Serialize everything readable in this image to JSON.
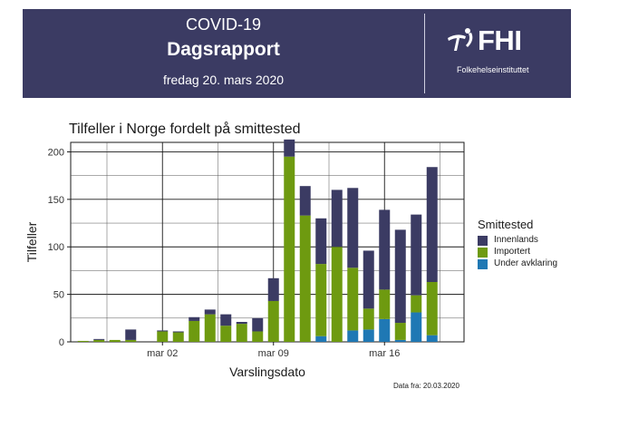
{
  "header": {
    "title": "COVID-19",
    "subtitle": "Dagsrapport",
    "date": "fredag 20. mars 2020",
    "logo_text": "FHI",
    "logo_subtext": "Folkehelseinstituttet",
    "background": "#3b3b63"
  },
  "chart_data": {
    "type": "bar",
    "stacked": true,
    "title": "Tilfeller i Norge fordelt på smittested",
    "xlabel": "Varslingsdato",
    "ylabel": "Tilfeller",
    "ylim": [
      0,
      210
    ],
    "yticks": [
      0,
      50,
      100,
      150,
      200
    ],
    "xticks": [
      {
        "label": "mar 02",
        "day": 6
      },
      {
        "label": "mar 09",
        "day": 13
      },
      {
        "label": "mar 16",
        "day": 20
      }
    ],
    "grid": true,
    "legend": {
      "title": "Smittested",
      "position": "right"
    },
    "x_days": [
      1,
      2,
      3,
      4,
      5,
      6,
      7,
      8,
      9,
      10,
      11,
      12,
      13,
      14,
      15,
      16,
      17,
      18,
      19,
      20,
      21,
      22,
      23,
      24
    ],
    "series": [
      {
        "name": "Under avklaring",
        "color": "#1f78b4",
        "values": [
          0,
          0,
          0,
          0,
          0,
          0,
          0,
          0,
          0,
          0,
          0,
          0,
          0,
          0,
          0,
          6,
          0,
          12,
          13,
          24,
          2,
          31,
          7,
          0
        ]
      },
      {
        "name": "Importert",
        "color": "#6e9a10",
        "values": [
          1,
          2,
          2,
          2,
          0,
          11,
          10,
          22,
          29,
          17,
          19,
          11,
          43,
          195,
          133,
          76,
          100,
          66,
          22,
          31,
          18,
          18,
          56,
          0
        ]
      },
      {
        "name": "Innenlands",
        "color": "#3b3b63",
        "values": [
          0,
          1,
          0,
          11,
          0,
          1,
          1,
          4,
          5,
          12,
          2,
          14,
          24,
          18,
          31,
          48,
          60,
          84,
          61,
          84,
          98,
          85,
          121,
          0
        ]
      }
    ]
  },
  "data_note": "Data fra: 20.03.2020"
}
